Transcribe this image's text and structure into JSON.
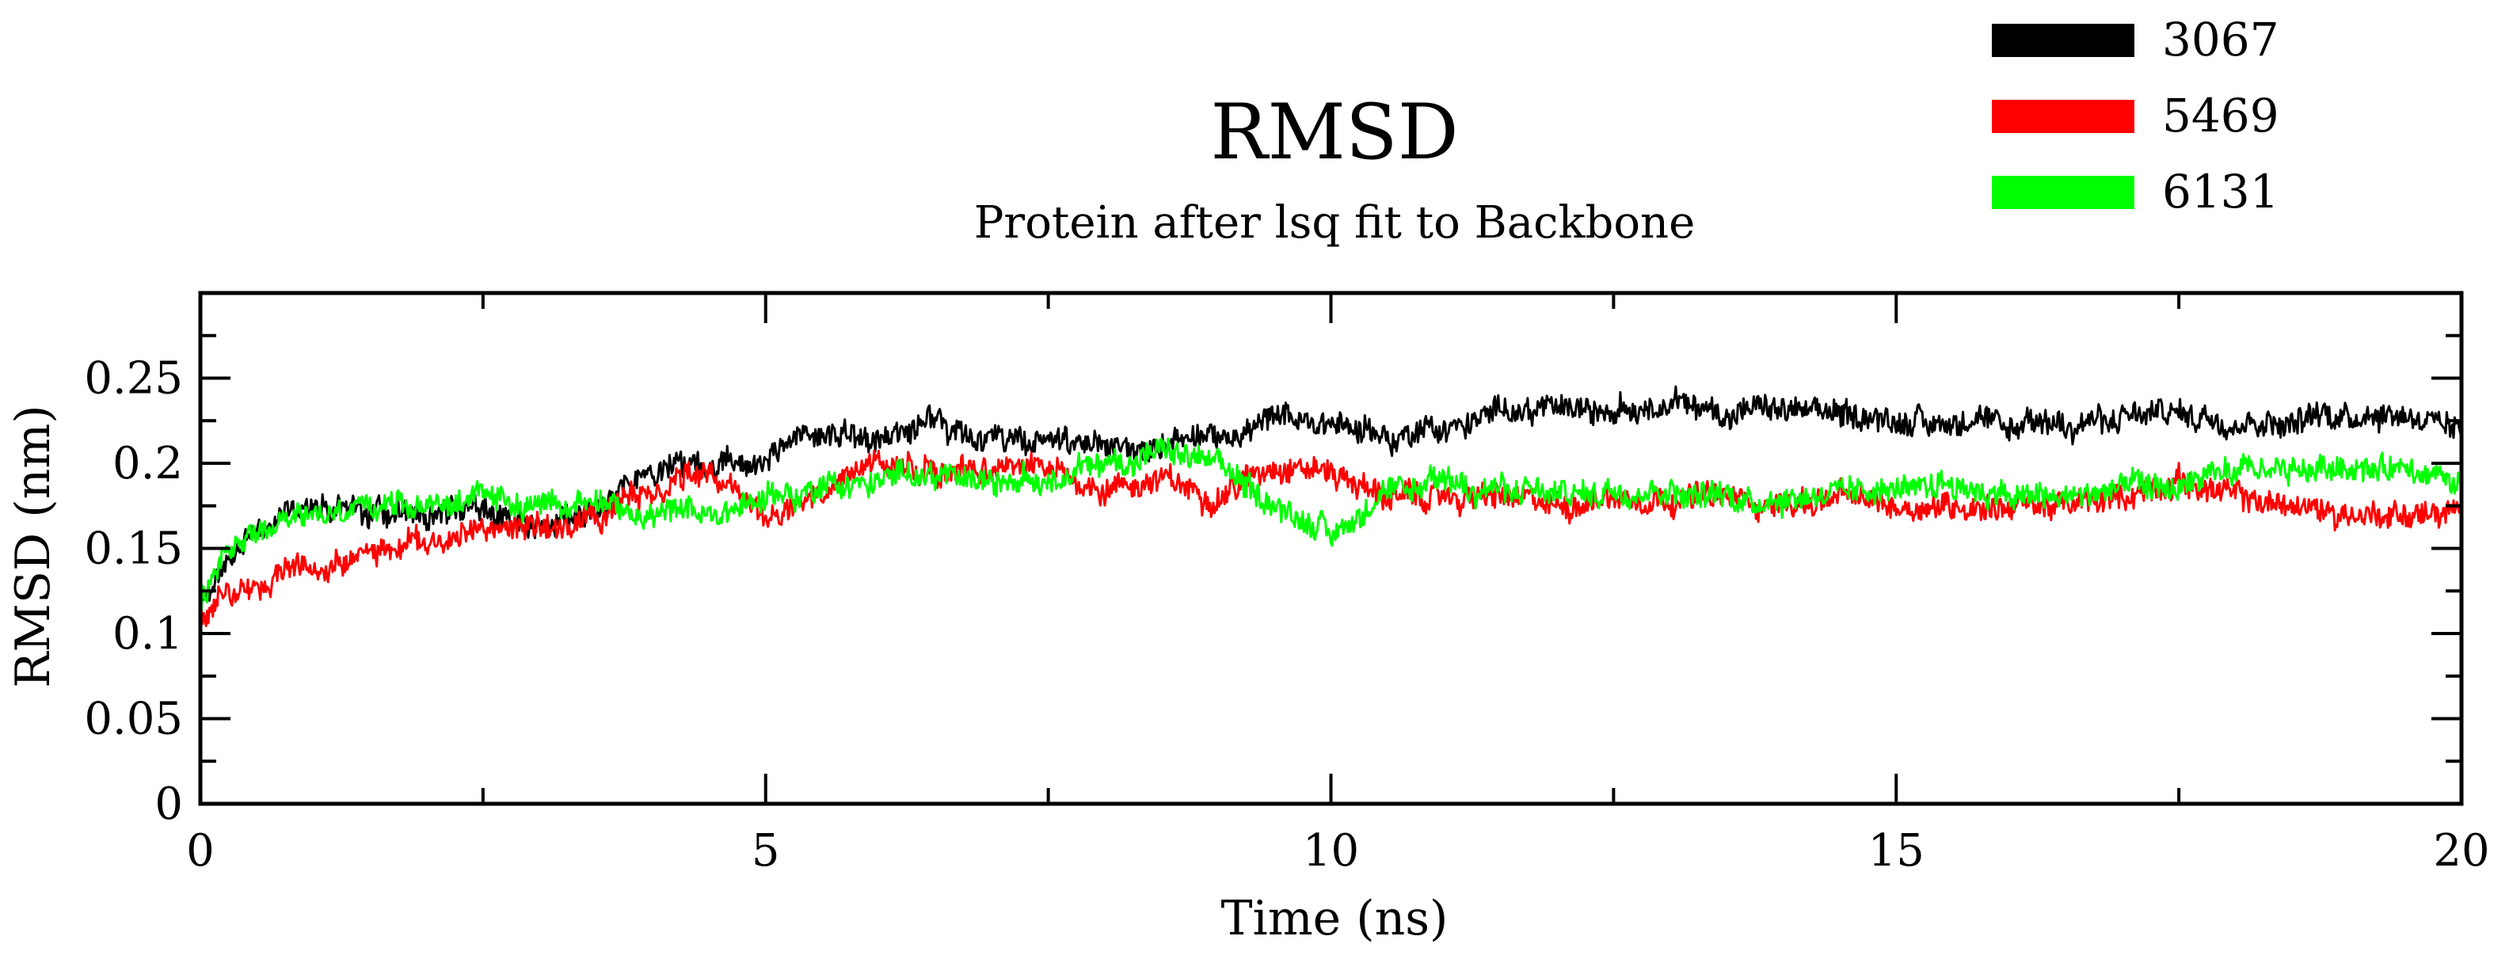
{
  "chart_data": {
    "type": "line",
    "title": "RMSD",
    "subtitle": "Protein after lsq fit to Backbone",
    "xlabel": "Time (ns)",
    "ylabel": "RMSD (nm)",
    "xlim": [
      0,
      20
    ],
    "ylim": [
      0,
      0.3
    ],
    "xticks": [
      0,
      5,
      10,
      15,
      20
    ],
    "xtick_labels": [
      "0",
      "5",
      "10",
      "15",
      "20"
    ],
    "yticks": [
      0,
      0.05,
      0.1,
      0.15,
      0.2,
      0.25
    ],
    "ytick_labels": [
      "0",
      "0.05",
      "0.1",
      "0.15",
      "0.2",
      "0.25"
    ],
    "legend_position": "top-right",
    "series": [
      {
        "name": "3067",
        "color": "#000000",
        "noise": 0.008,
        "x": [
          0,
          0.2,
          0.5,
          1,
          1.5,
          2,
          2.5,
          3,
          3.5,
          4,
          4.5,
          5,
          5.5,
          6,
          6.5,
          7,
          7.5,
          8,
          8.5,
          9,
          9.5,
          10,
          10.5,
          11,
          11.5,
          12,
          12.5,
          13,
          13.5,
          14,
          14.5,
          15,
          15.5,
          16,
          16.5,
          17,
          17.5,
          18,
          18.5,
          19,
          19.5,
          20
        ],
        "values": [
          0.11,
          0.14,
          0.16,
          0.175,
          0.17,
          0.17,
          0.175,
          0.16,
          0.175,
          0.195,
          0.2,
          0.205,
          0.22,
          0.215,
          0.225,
          0.215,
          0.21,
          0.21,
          0.21,
          0.215,
          0.225,
          0.225,
          0.215,
          0.22,
          0.23,
          0.235,
          0.23,
          0.235,
          0.23,
          0.23,
          0.23,
          0.225,
          0.225,
          0.22,
          0.225,
          0.225,
          0.23,
          0.225,
          0.225,
          0.23,
          0.23,
          0.22
        ]
      },
      {
        "name": "5469",
        "color": "#ff0000",
        "noise": 0.008,
        "x": [
          0,
          0.2,
          0.5,
          1,
          1.5,
          2,
          2.5,
          3,
          3.5,
          4,
          4.5,
          5,
          5.5,
          6,
          6.5,
          7,
          7.5,
          8,
          8.5,
          9,
          9.5,
          10,
          10.5,
          11,
          11.5,
          12,
          12.5,
          13,
          13.5,
          14,
          14.5,
          15,
          15.5,
          16,
          16.5,
          17,
          17.5,
          18,
          18.5,
          19,
          19.5,
          20
        ],
        "values": [
          0.11,
          0.12,
          0.13,
          0.14,
          0.145,
          0.155,
          0.16,
          0.16,
          0.17,
          0.185,
          0.195,
          0.17,
          0.18,
          0.2,
          0.195,
          0.2,
          0.195,
          0.185,
          0.19,
          0.18,
          0.2,
          0.195,
          0.18,
          0.18,
          0.18,
          0.175,
          0.18,
          0.18,
          0.18,
          0.175,
          0.18,
          0.175,
          0.175,
          0.175,
          0.175,
          0.18,
          0.19,
          0.18,
          0.175,
          0.17,
          0.17,
          0.17
        ]
      },
      {
        "name": "6131",
        "color": "#00ff00",
        "noise": 0.008,
        "x": [
          0,
          0.2,
          0.5,
          1,
          1.5,
          2,
          2.5,
          3,
          3.5,
          4,
          4.5,
          5,
          5.5,
          6,
          6.5,
          7,
          7.5,
          8,
          8.5,
          9,
          9.5,
          10,
          10.5,
          11,
          11.5,
          12,
          12.5,
          13,
          13.5,
          14,
          14.5,
          15,
          15.5,
          16,
          16.5,
          17,
          17.5,
          18,
          18.5,
          19,
          19.5,
          20
        ],
        "values": [
          0.12,
          0.145,
          0.16,
          0.17,
          0.175,
          0.175,
          0.18,
          0.175,
          0.175,
          0.17,
          0.17,
          0.18,
          0.185,
          0.19,
          0.195,
          0.19,
          0.19,
          0.2,
          0.205,
          0.2,
          0.175,
          0.16,
          0.18,
          0.19,
          0.185,
          0.18,
          0.185,
          0.185,
          0.18,
          0.18,
          0.185,
          0.185,
          0.19,
          0.18,
          0.18,
          0.185,
          0.185,
          0.195,
          0.195,
          0.2,
          0.195,
          0.185
        ]
      }
    ]
  }
}
